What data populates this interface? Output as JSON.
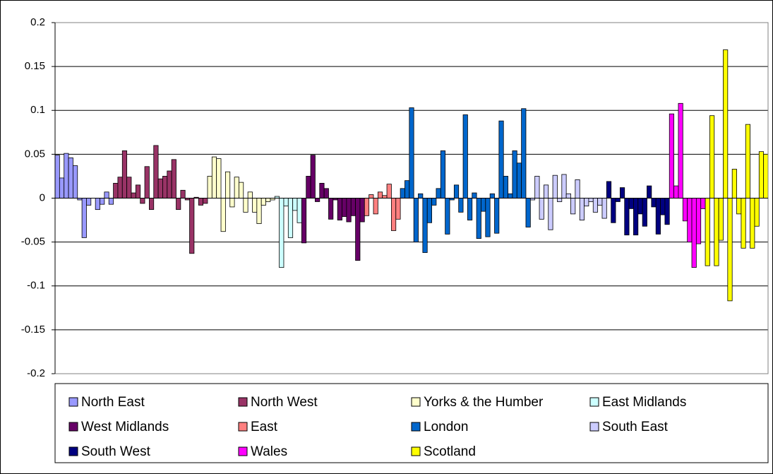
{
  "chart_data": {
    "type": "bar",
    "ylim": [
      -0.2,
      0.2
    ],
    "yticks": [
      -0.2,
      -0.15,
      -0.1,
      -0.05,
      0,
      0.05,
      0.1,
      0.15,
      0.2
    ],
    "grid": true,
    "legend": "bottom",
    "series": [
      {
        "name": "North East",
        "color": "#9999ff",
        "values": [
          0.049,
          0.023,
          0.051,
          0.046,
          0.037,
          -0.002,
          -0.045,
          -0.008,
          0.0,
          -0.013,
          -0.007,
          0.007,
          -0.007
        ]
      },
      {
        "name": "North West",
        "color": "#993366",
        "values": [
          0.017,
          0.024,
          0.054,
          0.024,
          0.006,
          0.015,
          -0.006,
          0.036,
          -0.013,
          0.06,
          0.022,
          0.025,
          0.031,
          0.044,
          -0.013,
          0.009,
          -0.002,
          -0.063,
          0.001,
          -0.008,
          -0.006
        ]
      },
      {
        "name": "Yorks & the Humber",
        "color": "#ffffcc",
        "values": [
          0.025,
          0.047,
          0.045,
          -0.038,
          0.03,
          -0.01,
          0.024,
          0.018,
          -0.016,
          0.007,
          -0.016,
          -0.029,
          -0.008,
          -0.004,
          -0.002
        ]
      },
      {
        "name": "East Midlands",
        "color": "#ccffff",
        "values": [
          0.002,
          -0.079,
          -0.009,
          -0.045,
          -0.014,
          -0.028
        ]
      },
      {
        "name": "West Midlands",
        "color": "#660066",
        "values": [
          -0.051,
          0.025,
          0.049,
          -0.004,
          0.017,
          0.011,
          -0.024,
          -0.002,
          -0.025,
          -0.021,
          -0.027,
          -0.02,
          -0.071,
          -0.027
        ]
      },
      {
        "name": "East",
        "color": "#ff8080",
        "values": [
          -0.02,
          0.004,
          -0.018,
          0.007,
          0.003,
          0.016,
          -0.037,
          -0.024
        ]
      },
      {
        "name": "London",
        "color": "#0066cc",
        "values": [
          0.011,
          0.02,
          0.103,
          -0.05,
          0.005,
          -0.062,
          -0.028,
          -0.008,
          0.011,
          0.054,
          -0.041,
          -0.002,
          0.015,
          -0.016,
          0.095,
          -0.025,
          0.006,
          -0.046,
          -0.015,
          -0.044,
          0.005,
          -0.04,
          0.088,
          0.025,
          0.005,
          0.054,
          0.04,
          0.102,
          -0.033
        ]
      },
      {
        "name": "South East",
        "color": "#ccccff",
        "values": [
          -0.002,
          0.025,
          -0.024,
          0.015,
          -0.036,
          0.026,
          -0.004,
          0.027,
          0.005,
          -0.018,
          0.021,
          -0.025,
          -0.009,
          -0.004,
          -0.016,
          -0.008,
          -0.023
        ]
      },
      {
        "name": "South West",
        "color": "#000080",
        "values": [
          0.019,
          -0.028,
          -0.004,
          0.012,
          -0.042,
          -0.012,
          -0.042,
          -0.018,
          -0.032,
          0.014,
          -0.01,
          -0.041,
          -0.019,
          -0.03
        ]
      },
      {
        "name": "Wales",
        "color": "#ff00ff",
        "values": [
          0.096,
          0.014,
          0.108,
          -0.026,
          -0.05,
          -0.079,
          -0.052,
          -0.012
        ]
      },
      {
        "name": "Scotland",
        "color": "#ffff00",
        "values": [
          -0.077,
          0.094,
          -0.077,
          -0.048,
          0.169,
          -0.117,
          0.033,
          -0.018,
          -0.057,
          0.084,
          -0.057,
          -0.032,
          0.053,
          0.05
        ]
      }
    ]
  }
}
